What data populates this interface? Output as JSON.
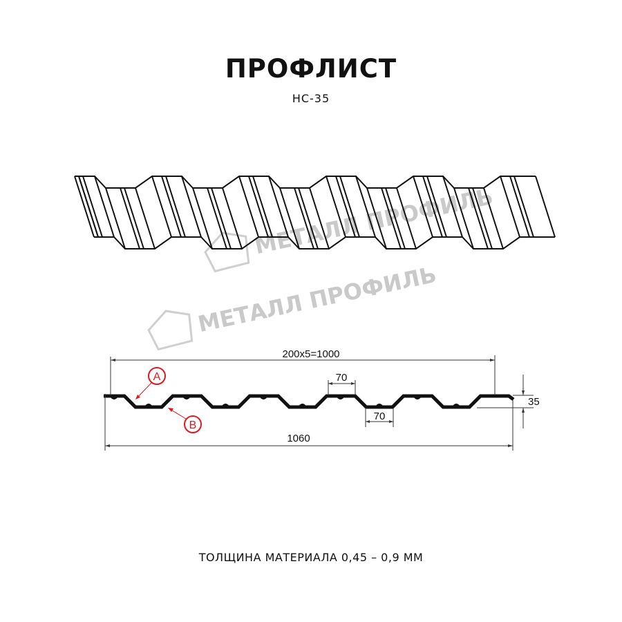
{
  "header": {
    "title": "ПРОФЛИСТ",
    "subtitle": "НС-35"
  },
  "watermark": {
    "text": "МЕТАЛЛ ПРОФИЛЬ",
    "color": "#c9c9c9"
  },
  "drawing": {
    "dimensions": {
      "pitch_total": "200x5=1000",
      "full_width": "1060",
      "top_flat": "70",
      "bottom_flat": "70",
      "height": "35"
    },
    "callouts": [
      {
        "label": "A",
        "color": "#e0191e"
      },
      {
        "label": "B",
        "color": "#e0191e"
      }
    ]
  },
  "footer": {
    "text": "ТОЛЩИНА МАТЕРИАЛА 0,45 – 0,9 ММ"
  }
}
